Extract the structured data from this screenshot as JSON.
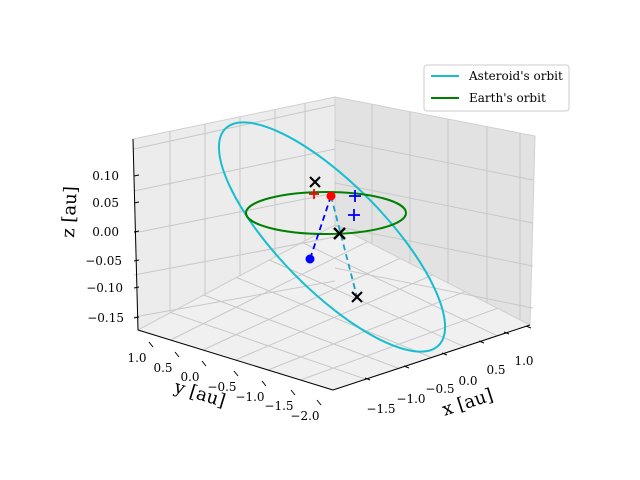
{
  "chart_data": {
    "type": "line",
    "projection": "3d",
    "xlabel": "x [au]",
    "ylabel": "y [au]",
    "zlabel": "z [au]",
    "xlim": [
      -2.0,
      1.2
    ],
    "ylim": [
      -2.1,
      1.2
    ],
    "zlim": [
      -0.17,
      0.14
    ],
    "x_ticks": [
      "−1.5",
      "−1.0",
      "−0.5",
      "0.0",
      "0.5",
      "1.0"
    ],
    "y_ticks": [
      "1.0",
      "0.5",
      "0.0",
      "−0.5",
      "−1.0",
      "−1.5",
      "−2.0"
    ],
    "z_ticks": [
      "0.10",
      "0.05",
      "0.00",
      "−0.05",
      "−0.10",
      "−0.15"
    ],
    "grid": true,
    "legend_position": "top-right",
    "series": [
      {
        "name": "Asteroid's orbit",
        "color": "#17becf",
        "kind": "ellipse"
      },
      {
        "name": "Earth's orbit",
        "color": "#008000",
        "kind": "ellipse"
      }
    ],
    "annotations": [
      {
        "kind": "point",
        "color": "#ff0000",
        "x": 0.0,
        "y": 0.55,
        "z": 0.06
      },
      {
        "kind": "point",
        "color": "#0000ff",
        "x": -0.25,
        "y": 0.35,
        "z": -0.05
      },
      {
        "kind": "cross",
        "color": "#000000",
        "x": 0.05,
        "y": 0.85,
        "z": 0.08
      },
      {
        "kind": "cross",
        "color": "#000000",
        "x": -0.05,
        "y": 0.0,
        "z": 0.0
      },
      {
        "kind": "cross",
        "color": "#000000",
        "x": -0.35,
        "y": -0.25,
        "z": -0.13
      },
      {
        "kind": "plus",
        "color": "#ff0000",
        "x": 0.15,
        "y": 0.75,
        "z": 0.065
      },
      {
        "kind": "plus",
        "color": "#0000ff",
        "x": -0.35,
        "y": 0.45,
        "z": 0.06
      },
      {
        "kind": "plus",
        "color": "#0000ff",
        "x": -0.3,
        "y": 0.3,
        "z": 0.03
      }
    ]
  }
}
